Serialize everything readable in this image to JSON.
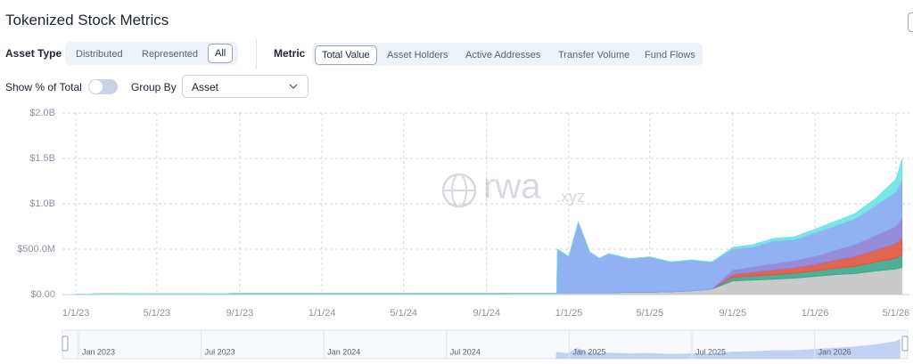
{
  "header": {
    "title": "Tokenized Stock Metrics"
  },
  "controls": {
    "asset_type": {
      "label": "Asset Type",
      "options": [
        "Distributed",
        "Represented",
        "All"
      ],
      "selected": "All"
    },
    "metric": {
      "label": "Metric",
      "options": [
        "Total Value",
        "Asset Holders",
        "Active Addresses",
        "Transfer Volume",
        "Fund Flows"
      ],
      "selected": "Total Value"
    },
    "show_percent": {
      "label": "Show % of Total"
    },
    "group_by": {
      "label": "Group By",
      "value": "Asset"
    }
  },
  "watermark": {
    "main": "rwa",
    "suffix": ".xyz"
  },
  "chart_data": {
    "type": "stacked-area",
    "x": [
      "1/1/23",
      "3/1/23",
      "5/1/23",
      "7/1/23",
      "9/1/23",
      "11/1/23",
      "1/1/24",
      "3/1/24",
      "5/1/24",
      "7/1/24",
      "9/1/24",
      "11/1/24",
      "12/14/24",
      "12/15/24",
      "1/1/25",
      "1/15/25",
      "2/1/25",
      "2/15/25",
      "3/1/25",
      "4/1/25",
      "5/1/25",
      "6/1/25",
      "7/1/25",
      "8/1/25",
      "9/1/25",
      "10/1/25",
      "11/1/25",
      "12/1/25",
      "1/1/26",
      "2/1/26",
      "3/1/26",
      "4/1/26",
      "5/1/26",
      "5/10/26"
    ],
    "series": [
      {
        "color": "#c4c4c4",
        "values": [
          5000000,
          8000000,
          10000000,
          10000000,
          12000000,
          12000000,
          12000000,
          12000000,
          12000000,
          12000000,
          12000000,
          15000000,
          15000000,
          20000000,
          20000000,
          20000000,
          20000000,
          20000000,
          20000000,
          25000000,
          25000000,
          30000000,
          40000000,
          60000000,
          150000000,
          160000000,
          170000000,
          180000000,
          200000000,
          220000000,
          230000000,
          260000000,
          280000000,
          300000000
        ]
      },
      {
        "color": "#3aa68a",
        "values": [
          0,
          0,
          0,
          0,
          0,
          0,
          0,
          0,
          0,
          0,
          0,
          0,
          0,
          0,
          0,
          0,
          0,
          0,
          0,
          0,
          0,
          0,
          0,
          0,
          40000000,
          45000000,
          50000000,
          55000000,
          60000000,
          70000000,
          80000000,
          100000000,
          120000000,
          140000000
        ]
      },
      {
        "color": "#e0533d",
        "values": [
          0,
          0,
          0,
          0,
          0,
          0,
          0,
          0,
          0,
          0,
          0,
          0,
          0,
          0,
          0,
          0,
          0,
          0,
          0,
          0,
          0,
          0,
          0,
          0,
          30000000,
          40000000,
          50000000,
          60000000,
          70000000,
          90000000,
          110000000,
          130000000,
          160000000,
          180000000
        ]
      },
      {
        "color": "#8b7fd6",
        "values": [
          0,
          0,
          0,
          0,
          0,
          0,
          0,
          0,
          0,
          0,
          0,
          0,
          0,
          0,
          0,
          0,
          0,
          0,
          0,
          0,
          0,
          0,
          0,
          0,
          50000000,
          60000000,
          70000000,
          80000000,
          90000000,
          110000000,
          130000000,
          160000000,
          190000000,
          220000000
        ]
      },
      {
        "color": "#86a8f2",
        "values": [
          0,
          0,
          0,
          0,
          0,
          0,
          0,
          0,
          0,
          0,
          0,
          0,
          0,
          480000000,
          400000000,
          780000000,
          450000000,
          380000000,
          430000000,
          370000000,
          390000000,
          330000000,
          340000000,
          300000000,
          230000000,
          220000000,
          250000000,
          230000000,
          260000000,
          270000000,
          280000000,
          330000000,
          380000000,
          420000000
        ]
      },
      {
        "color": "#6be3e3",
        "values": [
          0,
          0,
          0,
          0,
          0,
          0,
          0,
          0,
          0,
          0,
          0,
          0,
          0,
          0,
          0,
          0,
          0,
          0,
          0,
          0,
          0,
          0,
          0,
          0,
          20000000,
          25000000,
          30000000,
          30000000,
          40000000,
          50000000,
          60000000,
          80000000,
          140000000,
          230000000
        ]
      }
    ],
    "xlim": [
      "12/12/22",
      "5/21/26"
    ],
    "xticks": [
      "1/1/23",
      "5/1/23",
      "9/1/23",
      "1/1/24",
      "5/1/24",
      "9/1/24",
      "1/1/25",
      "5/1/25",
      "9/1/25",
      "1/1/26",
      "5/1/26"
    ],
    "ylim": [
      0,
      2000000000
    ],
    "yticks": [
      {
        "value": 0,
        "label": "$0.00"
      },
      {
        "value": 500000000,
        "label": "$500.0M"
      },
      {
        "value": 1000000000,
        "label": "$1.0B"
      },
      {
        "value": 1500000000,
        "label": "$1.5B"
      },
      {
        "value": 2000000000,
        "label": "$2.0B"
      }
    ],
    "grid": true
  },
  "navigator": {
    "labels": [
      "Jan 2023",
      "Jul 2023",
      "Jan 2024",
      "Jul 2024",
      "Jan 2025",
      "Jul 2025",
      "Jan 2026"
    ]
  }
}
